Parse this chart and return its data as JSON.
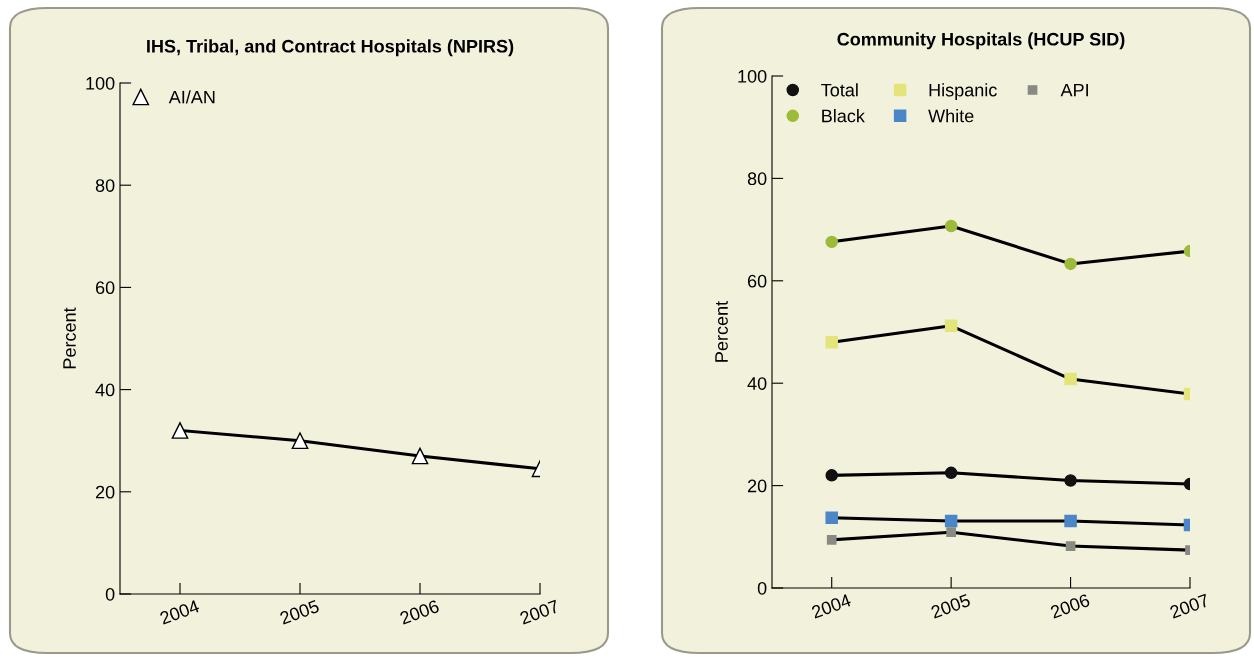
{
  "chart_data": [
    {
      "type": "line",
      "title": "IHS, Tribal, and Contract Hospitals (NPIRS)",
      "ylabel": "Percent",
      "categories": [
        "2004",
        "2005",
        "2006",
        "2007"
      ],
      "ylim": [
        0,
        100
      ],
      "yticks": [
        0,
        20,
        40,
        60,
        80,
        100
      ],
      "grid": false,
      "legend": "top left",
      "marker": "triangle",
      "series": [
        {
          "name": "AI/AN",
          "color": "#ffffff",
          "values": [
            32,
            30,
            27,
            24.5
          ]
        }
      ]
    },
    {
      "type": "line",
      "title": "Community Hospitals (HCUP SID)",
      "ylabel": "Percent",
      "categories": [
        "2004",
        "2005",
        "2006",
        "2007"
      ],
      "ylim": [
        0,
        100
      ],
      "yticks": [
        0,
        20,
        40,
        60,
        80,
        100
      ],
      "grid": false,
      "legend": "top left",
      "marker": "circle",
      "series": [
        {
          "name": "Total",
          "color": "#111111",
          "marker": "circle",
          "values": [
            22,
            22.5,
            21,
            20.3
          ]
        },
        {
          "name": "Black",
          "color": "#9dbb3a",
          "marker": "circle",
          "values": [
            67.6,
            70.7,
            63.3,
            65.8
          ]
        },
        {
          "name": "Hispanic",
          "color": "#e3e57a",
          "marker": "square",
          "values": [
            48,
            51.2,
            40.8,
            37.9
          ]
        },
        {
          "name": "White",
          "color": "#4a86c8",
          "marker": "square",
          "values": [
            13.7,
            13.1,
            13.1,
            12.3
          ]
        },
        {
          "name": "API",
          "color": "#8a8a84",
          "marker": "square",
          "values": [
            9.4,
            10.9,
            8.2,
            7.4
          ]
        }
      ]
    }
  ]
}
